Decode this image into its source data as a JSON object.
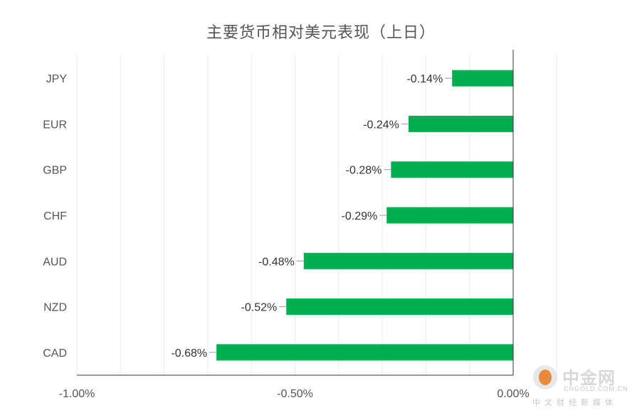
{
  "chart_data": {
    "type": "bar",
    "orientation": "horizontal",
    "title": "主要货币相对美元表现（上日）",
    "categories": [
      "JPY",
      "EUR",
      "GBP",
      "CHF",
      "AUD",
      "NZD",
      "CAD"
    ],
    "values": [
      -0.14,
      -0.24,
      -0.28,
      -0.29,
      -0.48,
      -0.52,
      -0.68
    ],
    "data_labels": [
      "-0.14%",
      "-0.24%",
      "-0.28%",
      "-0.29%",
      "-0.48%",
      "-0.52%",
      "-0.68%"
    ],
    "xlim": [
      -1.0,
      0.0
    ],
    "x_ticks": [
      -1.0,
      -0.5,
      0.0
    ],
    "x_tick_labels": [
      "-1.00%",
      "-0.50%",
      "0.00%"
    ],
    "grid": true,
    "bar_color": "#00b050"
  },
  "watermark": {
    "name": "中金网",
    "domain": "CNGOLD.COM.CN",
    "tagline": "中文财经新媒体"
  }
}
